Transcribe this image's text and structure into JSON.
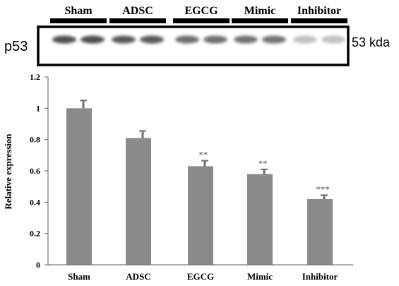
{
  "blot": {
    "protein_label": "p53",
    "size_label": "53 kda",
    "groups": [
      "Sham",
      "ADSC",
      "EGCG",
      "Mimic",
      "Inhibitor"
    ],
    "band_intensity": [
      1.0,
      0.95,
      0.82,
      0.8,
      0.35
    ],
    "colors": {
      "band": "#3a3a3a",
      "frame": "#000000",
      "group_bar": "#000000"
    }
  },
  "chart_data": {
    "type": "bar",
    "categories": [
      "Sham",
      "ADSC",
      "EGCG",
      "Mimic",
      "Inhibitor"
    ],
    "values": [
      1.0,
      0.81,
      0.63,
      0.58,
      0.42
    ],
    "errors": [
      0.05,
      0.045,
      0.035,
      0.03,
      0.025
    ],
    "significance": [
      "",
      "",
      "**",
      "**",
      "***"
    ],
    "ylabel": "Relative expression",
    "ylim": [
      0,
      1.2
    ],
    "yticks": [
      0,
      0.2,
      0.4,
      0.6,
      0.8,
      1,
      1.2
    ],
    "ytick_labels": [
      "0",
      "0.2",
      "0.4",
      "0.6",
      "0.8",
      "1",
      "1.2"
    ],
    "grid": false,
    "legend": "none",
    "colors": {
      "bar": "#8a8a8a",
      "axis": "#7a7a7a",
      "text": "#000000",
      "star": "#555555"
    }
  }
}
